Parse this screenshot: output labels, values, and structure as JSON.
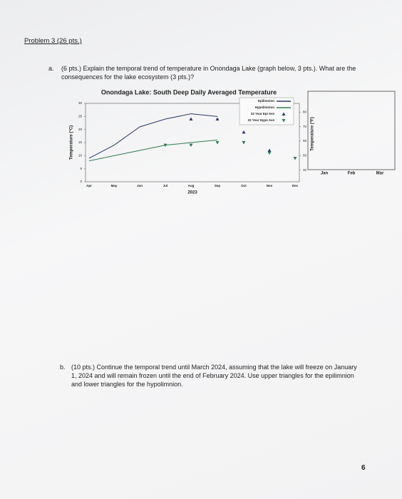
{
  "header": {
    "title": "Problem 3 (26 pts.)"
  },
  "part_a": {
    "label": "a.",
    "text": "(6 pts.) Explain the temporal trend of temperature in Onondaga Lake (graph below, 3 pts.). What are the consequences for the lake ecosystem (3 pts.)?"
  },
  "chart": {
    "type": "line",
    "title": "Onondaga Lake: South Deep Daily Averaged Temperature",
    "ylabel": "Temperature (°C)",
    "y2label": "Temperature (°F)",
    "year_label": "2023",
    "categories": [
      "Apr",
      "May",
      "Jun",
      "Jul",
      "Aug",
      "Sep",
      "Oct",
      "Nov",
      "Dec",
      "Jan",
      "Feb",
      "Mar"
    ],
    "ylim": [
      0,
      30
    ],
    "yticks": [
      0,
      5,
      10,
      15,
      20,
      25,
      30
    ],
    "y2lim": [
      32,
      86
    ],
    "y2ticks": [
      40,
      50,
      60,
      70,
      80
    ],
    "series": [
      {
        "name": "Epilimnion",
        "color": "#2b3a67",
        "style": "line",
        "values": [
          9,
          14,
          21,
          24,
          26,
          25,
          null,
          null,
          null,
          null,
          null,
          null
        ]
      },
      {
        "name": "Hypolimnion",
        "color": "#2e7d4f",
        "style": "line",
        "values": [
          8,
          10,
          12,
          14,
          15,
          16,
          null,
          null,
          null,
          null,
          null,
          null
        ]
      },
      {
        "name": "22 Year Epi Ave",
        "color": "#2b3a67",
        "style": "triangle-up",
        "values": [
          null,
          null,
          null,
          null,
          24,
          24,
          19,
          12,
          null,
          null,
          null,
          null
        ]
      },
      {
        "name": "22 Year Hypo Ave",
        "color": "#2e7d4f",
        "style": "triangle-down",
        "values": [
          null,
          null,
          null,
          14,
          14,
          15,
          15,
          11,
          9,
          null,
          null,
          null
        ]
      }
    ]
  },
  "part_b": {
    "label": "b.",
    "text": "(10 pts.) Continue the temporal trend until March 2024, assuming that the lake will freeze on January 1, 2024 and will remain frozen until the end of February 2024. Use upper triangles for the epilimnion and lower triangles for the hypolimnion."
  },
  "page_number": "6"
}
